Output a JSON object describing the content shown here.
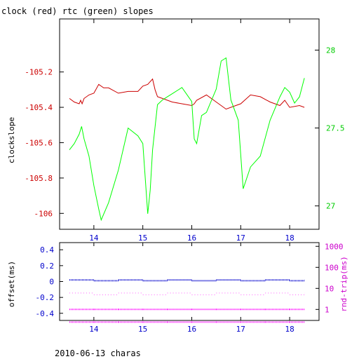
{
  "chart_data": [
    {
      "type": "line",
      "title": "clock (red) rtc (green) slopes",
      "xlabel": "",
      "ylabel": "clockslope",
      "xlim": [
        13.3,
        18.6
      ],
      "ylim": [
        -106.09,
        -104.9
      ],
      "y2lim": [
        26.85,
        28.2
      ],
      "x_ticks": [
        14,
        15,
        16,
        17,
        18
      ],
      "y_ticks": [
        -105.2,
        -105.4,
        -105.6,
        -105.8,
        -106
      ],
      "y2_ticks": [
        28,
        27.5,
        27
      ],
      "colors": {
        "clock": "#cc0000",
        "rtc": "#00ff00",
        "axis": "#00cc00"
      },
      "series": [
        {
          "axis": "left",
          "x": [
            13.5,
            13.6,
            13.7,
            13.73,
            13.76,
            13.8,
            13.9,
            14.0,
            14.1,
            14.2,
            14.3,
            14.5,
            14.7,
            14.9,
            15.0,
            15.1,
            15.2,
            15.25,
            15.3,
            15.4,
            15.6,
            15.8,
            16.0,
            16.05,
            16.1,
            16.3,
            16.5,
            16.7,
            16.9,
            17.0,
            17.2,
            17.4,
            17.6,
            17.8,
            17.9,
            18.0,
            18.2,
            18.3
          ],
          "values": [
            -105.35,
            -105.37,
            -105.38,
            -105.36,
            -105.38,
            -105.35,
            -105.33,
            -105.32,
            -105.27,
            -105.29,
            -105.29,
            -105.32,
            -105.31,
            -105.31,
            -105.28,
            -105.27,
            -105.24,
            -105.3,
            -105.34,
            -105.35,
            -105.37,
            -105.38,
            -105.39,
            -105.38,
            -105.36,
            -105.33,
            -105.37,
            -105.41,
            -105.39,
            -105.38,
            -105.33,
            -105.34,
            -105.37,
            -105.39,
            -105.36,
            -105.4,
            -105.39,
            -105.4
          ]
        },
        {
          "axis": "right",
          "x": [
            13.5,
            13.6,
            13.7,
            13.75,
            13.8,
            13.9,
            14.0,
            14.1,
            14.15,
            14.3,
            14.5,
            14.7,
            14.9,
            15.0,
            15.1,
            15.15,
            15.2,
            15.3,
            15.4,
            15.5,
            15.6,
            15.8,
            16.0,
            16.05,
            16.1,
            16.2,
            16.3,
            16.5,
            16.6,
            16.7,
            16.8,
            16.95,
            17.05,
            17.2,
            17.4,
            17.6,
            17.8,
            17.9,
            18.0,
            18.1,
            18.2,
            18.3
          ],
          "values": [
            27.36,
            27.4,
            27.46,
            27.51,
            27.43,
            27.32,
            27.13,
            26.98,
            26.91,
            27.02,
            27.23,
            27.5,
            27.45,
            27.4,
            26.95,
            27.1,
            27.36,
            27.65,
            27.68,
            27.7,
            27.72,
            27.76,
            27.67,
            27.43,
            27.4,
            27.58,
            27.6,
            27.75,
            27.93,
            27.95,
            27.68,
            27.55,
            27.11,
            27.25,
            27.32,
            27.55,
            27.7,
            27.76,
            27.73,
            27.66,
            27.7,
            27.82
          ]
        }
      ]
    },
    {
      "type": "scatter",
      "title": "",
      "xlabel": "",
      "ylabel": "offset(ms)",
      "y2label": "rnd-trip(ms)",
      "xlim": [
        13.3,
        18.6
      ],
      "ylim": [
        -0.49,
        0.49
      ],
      "y2_log": true,
      "x_ticks": [
        14,
        15,
        16,
        17,
        18
      ],
      "y_ticks": [
        0.4,
        0.2,
        0,
        -0.2,
        -0.4
      ],
      "y2_ticks": [
        1000,
        100,
        10,
        1
      ],
      "colors": {
        "offset": "#0000cc",
        "roundtrip": "#ff00ff"
      },
      "series": [
        {
          "axis": "left",
          "x": [
            13.5,
            14.0,
            14.5,
            15.0,
            15.5,
            16.0,
            16.5,
            17.0,
            17.5,
            18.0,
            18.3
          ],
          "values": [
            0.02,
            0.01,
            0.02,
            0.01,
            0.02,
            0.01,
            0.02,
            0.01,
            0.02,
            0.01,
            0.02
          ]
        },
        {
          "axis": "right",
          "x": [
            13.5,
            14.0,
            14.5,
            15.0,
            15.5,
            16.0,
            16.5,
            17.0,
            17.5,
            18.0,
            18.3
          ],
          "values": [
            0.25,
            0.25,
            0.25,
            0.25,
            0.25,
            0.25,
            0.25,
            0.25,
            0.25,
            0.25,
            0.25
          ]
        },
        {
          "axis": "right",
          "x": [
            13.5,
            14.0,
            14.5,
            15.0,
            15.5,
            16.0,
            16.5,
            17.0,
            17.5,
            18.0,
            18.3
          ],
          "values": [
            1.0,
            1.0,
            1.0,
            1.0,
            1.0,
            1.0,
            1.0,
            1.0,
            1.0,
            1.0,
            1.0
          ]
        },
        {
          "axis": "right",
          "x": [
            13.5,
            14.0,
            14.5,
            15.0,
            15.5,
            16.0,
            16.5,
            17.0,
            17.5,
            18.0,
            18.3
          ],
          "values": [
            6,
            5,
            6,
            5,
            6,
            5,
            6,
            5,
            6,
            5,
            6
          ]
        }
      ]
    }
  ],
  "footer": "2010-06-13 charas"
}
